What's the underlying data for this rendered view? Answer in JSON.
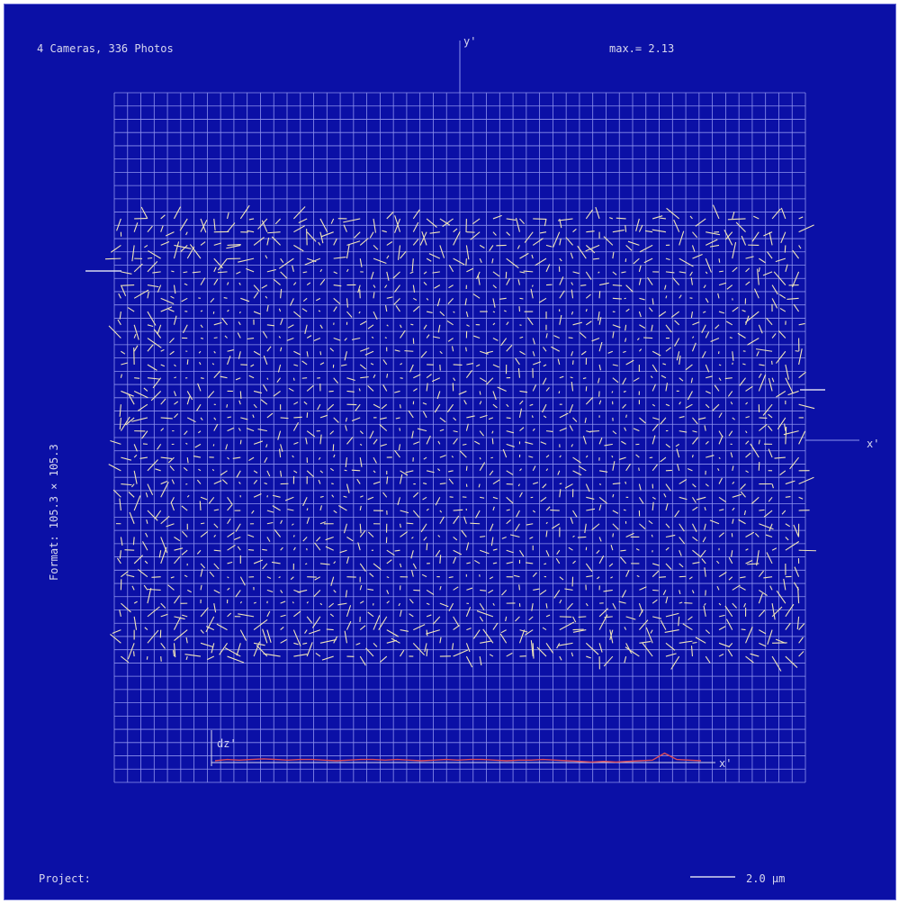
{
  "header": {
    "cameras_photos": "4 Cameras, 336 Photos",
    "max_value": "max.= 2.13"
  },
  "axes": {
    "y_label": "y'",
    "x_label": "x'",
    "format_label": "Format: 105.3 × 105.3"
  },
  "profile": {
    "y_label": "dz'",
    "x_label": "x'"
  },
  "footer": {
    "project_label": "Project:",
    "scale_label": "2.0 µm"
  },
  "colors": {
    "background": "#0b10a6",
    "grid": "#8e93ee",
    "vectors": "#f2e6b8",
    "text": "#d8d8ee",
    "profile_line": "#d84a5a"
  },
  "chart_data": {
    "type": "quiver",
    "title": "4 Cameras, 336 Photos",
    "xlabel": "x'",
    "ylabel": "y'",
    "grid": true,
    "grid_columns": 52,
    "grid_rows": 52,
    "max_residual": 2.13,
    "scale_bar_value": 2.0,
    "scale_bar_unit": "µm",
    "sensor_format": [
      105.3,
      105.3
    ],
    "residual_field": {
      "rows": 34,
      "cols": 52,
      "start_row": 9,
      "note_rendering": "vector residuals plotted at each image grid node in the occupied region"
    },
    "profile": {
      "ylabel": "dz'",
      "xlabel": "x'",
      "values": [
        0.0,
        0.1,
        0.05,
        0.1,
        0.15,
        0.1,
        0.05,
        0.1,
        0.1,
        0.05,
        0.0,
        0.05,
        0.1,
        0.1,
        0.05,
        0.1,
        0.05,
        0.0,
        0.05,
        0.1,
        0.05,
        0.1,
        0.1,
        0.05,
        0.0,
        0.05,
        0.05,
        0.1,
        0.05,
        0.0,
        -0.05,
        -0.1,
        -0.05,
        -0.1,
        -0.05,
        0.0,
        0.05,
        0.6,
        0.1,
        0.05,
        0.0
      ]
    }
  }
}
